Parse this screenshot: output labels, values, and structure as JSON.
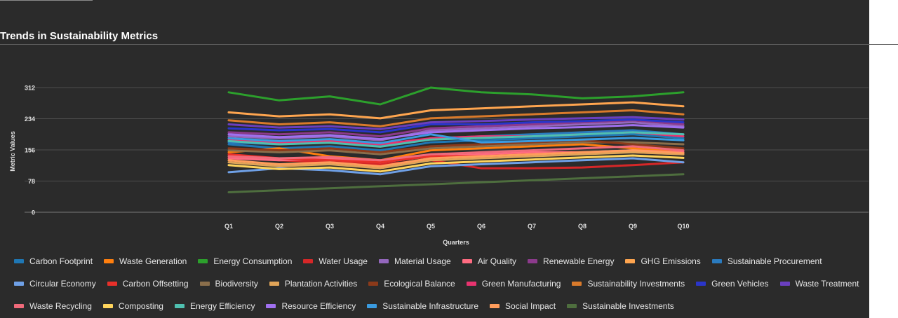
{
  "chart_data": {
    "type": "line",
    "title": "Trends in Sustainability Metrics",
    "xlabel": "Quarters",
    "ylabel": "Metric Values",
    "ylim": [
      0,
      312
    ],
    "yticks": [
      0,
      78,
      156,
      234,
      312
    ],
    "grid": true,
    "legend_position": "bottom",
    "categories": [
      "Q1",
      "Q2",
      "Q3",
      "Q4",
      "Q5",
      "Q6",
      "Q7",
      "Q8",
      "Q9",
      "Q10"
    ],
    "series": [
      {
        "name": "Carbon Footprint",
        "color": "#1f77b4",
        "values": [
          170,
          160,
          165,
          155,
          175,
          180,
          185,
          190,
          195,
          185
        ]
      },
      {
        "name": "Waste Generation",
        "color": "#ff7f0e",
        "values": [
          150,
          160,
          140,
          130,
          155,
          160,
          165,
          170,
          160,
          150
        ]
      },
      {
        "name": "Energy Consumption",
        "color": "#2ca02c",
        "values": [
          300,
          280,
          290,
          270,
          312,
          300,
          295,
          285,
          290,
          300
        ]
      },
      {
        "name": "Water Usage",
        "color": "#d62728",
        "values": [
          140,
          130,
          125,
          120,
          130,
          110,
          110,
          112,
          118,
          125
        ]
      },
      {
        "name": "Material Usage",
        "color": "#9467bd",
        "values": [
          190,
          185,
          190,
          180,
          205,
          210,
          215,
          220,
          225,
          215
        ]
      },
      {
        "name": "Air Quality",
        "color": "#ff6b81",
        "values": [
          135,
          130,
          135,
          125,
          140,
          145,
          150,
          150,
          155,
          150
        ]
      },
      {
        "name": "Renewable Energy",
        "color": "#8c3a8c",
        "values": [
          200,
          195,
          200,
          190,
          210,
          215,
          220,
          225,
          230,
          220
        ]
      },
      {
        "name": "GHG Emissions",
        "color": "#ffa54f",
        "values": [
          250,
          240,
          245,
          235,
          255,
          260,
          265,
          270,
          275,
          265
        ]
      },
      {
        "name": "Sustainable Procurement",
        "color": "#2a7bbf",
        "values": [
          175,
          170,
          175,
          165,
          185,
          190,
          195,
          200,
          205,
          195
        ]
      },
      {
        "name": "Circular Economy",
        "color": "#6fa0e6",
        "values": [
          100,
          110,
          105,
          95,
          115,
          120,
          125,
          130,
          135,
          125
        ]
      },
      {
        "name": "Carbon Offsetting",
        "color": "#e8302a",
        "values": [
          145,
          135,
          130,
          125,
          140,
          140,
          145,
          150,
          150,
          145
        ]
      },
      {
        "name": "Biodiversity",
        "color": "#8a6e4b",
        "values": [
          155,
          150,
          155,
          145,
          160,
          165,
          170,
          175,
          175,
          170
        ]
      },
      {
        "name": "Plantation Activities",
        "color": "#e0a458",
        "values": [
          125,
          115,
          120,
          110,
          130,
          135,
          140,
          145,
          150,
          145
        ]
      },
      {
        "name": "Ecological Balance",
        "color": "#8b3a1a",
        "values": [
          160,
          155,
          160,
          150,
          165,
          170,
          175,
          180,
          170,
          160
        ]
      },
      {
        "name": "Green Manufacturing",
        "color": "#e8336f",
        "values": [
          180,
          175,
          178,
          170,
          185,
          190,
          190,
          195,
          200,
          190
        ]
      },
      {
        "name": "Sustainability Investments",
        "color": "#d97a2b",
        "values": [
          230,
          220,
          225,
          215,
          235,
          240,
          245,
          250,
          255,
          245
        ]
      },
      {
        "name": "Green Vehicles",
        "color": "#2a35c9",
        "values": [
          210,
          205,
          208,
          200,
          220,
          220,
          225,
          228,
          232,
          225
        ]
      },
      {
        "name": "Waste Treatment",
        "color": "#6a3fbf",
        "values": [
          220,
          212,
          215,
          208,
          225,
          228,
          232,
          235,
          238,
          232
        ]
      },
      {
        "name": "Waste Recycling",
        "color": "#f06a7a",
        "values": [
          140,
          135,
          138,
          130,
          145,
          150,
          155,
          160,
          165,
          155
        ]
      },
      {
        "name": "Composting",
        "color": "#ffd45c",
        "values": [
          118,
          108,
          112,
          102,
          122,
          127,
          132,
          137,
          142,
          136
        ]
      },
      {
        "name": "Energy Efficiency",
        "color": "#4fc0b0",
        "values": [
          178,
          170,
          174,
          164,
          182,
          186,
          190,
          195,
          200,
          195
        ]
      },
      {
        "name": "Resource Efficiency",
        "color": "#a070f0",
        "values": [
          195,
          188,
          193,
          183,
          200,
          205,
          210,
          213,
          218,
          212
        ]
      },
      {
        "name": "Sustainable Infrastructure",
        "color": "#3a9be0",
        "values": [
          185,
          178,
          183,
          173,
          195,
          175,
          178,
          182,
          186,
          180
        ]
      },
      {
        "name": "Social Impact",
        "color": "#ff9d5c",
        "values": [
          130,
          120,
          125,
          115,
          135,
          140,
          145,
          150,
          155,
          148
        ]
      },
      {
        "name": "Sustainable Investments",
        "color": "#4e6e3e",
        "values": [
          50,
          55,
          60,
          65,
          70,
          75,
          80,
          85,
          90,
          95
        ]
      }
    ]
  }
}
